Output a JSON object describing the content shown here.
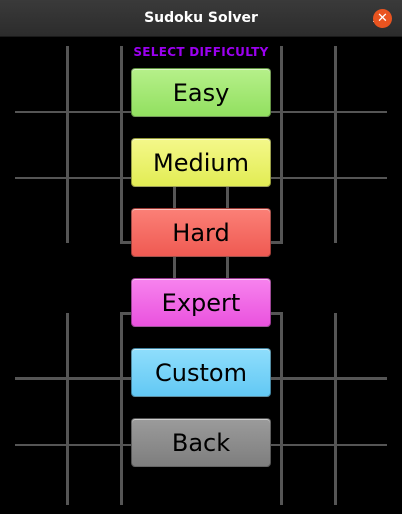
{
  "window": {
    "title": "Sudoku Solver",
    "minimize_glyph": "–",
    "close_glyph": "✕"
  },
  "menu": {
    "header": "SELECT DIFFICULTY",
    "header_color": "#9b00f0",
    "buttons": [
      {
        "label": "Easy",
        "color": "#9ee86e"
      },
      {
        "label": "Medium",
        "color": "#eaf268"
      },
      {
        "label": "Hard",
        "color": "#f4645c"
      },
      {
        "label": "Expert",
        "color": "#f05ee6"
      },
      {
        "label": "Custom",
        "color": "#6fd0f8"
      },
      {
        "label": "Back",
        "color": "#8a8a8a"
      }
    ]
  }
}
